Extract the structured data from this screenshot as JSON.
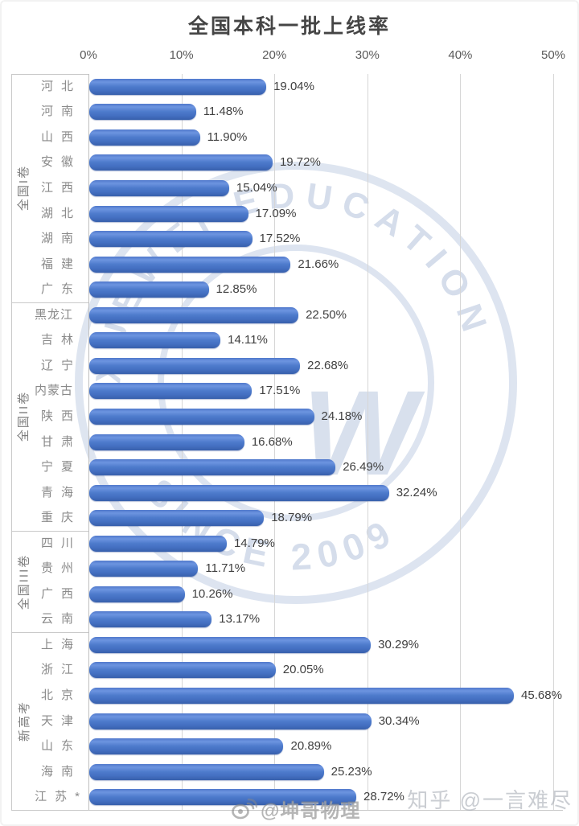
{
  "title": "全国本科一批上线率",
  "chart_data": {
    "type": "bar",
    "orientation": "horizontal",
    "title": "全国本科一批上线率",
    "xlabel": "",
    "ylabel": "",
    "xlim": [
      0,
      50
    ],
    "x_ticks": [
      "0%",
      "10%",
      "20%",
      "30%",
      "40%",
      "50%"
    ],
    "grid": true,
    "bar_color": "#4472c4",
    "value_suffix": "%",
    "legend_position": "none",
    "groups": [
      {
        "label": "全国I卷",
        "items": [
          {
            "name": "河北",
            "value": 19.04,
            "display": "19.04%"
          },
          {
            "name": "河南",
            "value": 11.48,
            "display": "11.48%"
          },
          {
            "name": "山西",
            "value": 11.9,
            "display": "11.90%"
          },
          {
            "name": "安徽",
            "value": 19.72,
            "display": "19.72%"
          },
          {
            "name": "江西",
            "value": 15.04,
            "display": "15.04%"
          },
          {
            "name": "湖北",
            "value": 17.09,
            "display": "17.09%"
          },
          {
            "name": "湖南",
            "value": 17.52,
            "display": "17.52%"
          },
          {
            "name": "福建",
            "value": 21.66,
            "display": "21.66%"
          },
          {
            "name": "广东",
            "value": 12.85,
            "display": "12.85%"
          }
        ]
      },
      {
        "label": "全国II卷",
        "items": [
          {
            "name": "黑龙江",
            "value": 22.5,
            "display": "22.50%"
          },
          {
            "name": "吉林",
            "value": 14.11,
            "display": "14.11%"
          },
          {
            "name": "辽宁",
            "value": 22.68,
            "display": "22.68%"
          },
          {
            "name": "内蒙古",
            "value": 17.51,
            "display": "17.51%"
          },
          {
            "name": "陕西",
            "value": 24.18,
            "display": "24.18%"
          },
          {
            "name": "甘肃",
            "value": 16.68,
            "display": "16.68%"
          },
          {
            "name": "宁夏",
            "value": 26.49,
            "display": "26.49%"
          },
          {
            "name": "青海",
            "value": 32.24,
            "display": "32.24%"
          },
          {
            "name": "重庆",
            "value": 18.79,
            "display": "18.79%"
          }
        ]
      },
      {
        "label": "全国III卷",
        "items": [
          {
            "name": "四川",
            "value": 14.79,
            "display": "14.79%"
          },
          {
            "name": "贵州",
            "value": 11.71,
            "display": "11.71%"
          },
          {
            "name": "广西",
            "value": 10.26,
            "display": "10.26%"
          },
          {
            "name": "云南",
            "value": 13.17,
            "display": "13.17%"
          }
        ]
      },
      {
        "label": "新高考",
        "items": [
          {
            "name": "上海",
            "value": 30.29,
            "display": "30.29%"
          },
          {
            "name": "浙江",
            "value": 20.05,
            "display": "20.05%"
          },
          {
            "name": "北京",
            "value": 45.68,
            "display": "45.68%"
          },
          {
            "name": "天津",
            "value": 30.34,
            "display": "30.34%"
          },
          {
            "name": "山东",
            "value": 20.89,
            "display": "20.89%"
          },
          {
            "name": "海南",
            "value": 25.23,
            "display": "25.23%"
          },
          {
            "name": "江苏*",
            "value": 28.72,
            "display": "28.72%"
          }
        ]
      }
    ]
  },
  "watermarks": {
    "seal_arc_top": "XUEWEI EDUCATION",
    "seal_arc_bottom": "SINCE 2009",
    "seal_center": "W",
    "seal_color": "#c2cfe4",
    "weibo_handle": "@坤哥物理",
    "zhihu_credit": "知乎 @一言难尽"
  }
}
